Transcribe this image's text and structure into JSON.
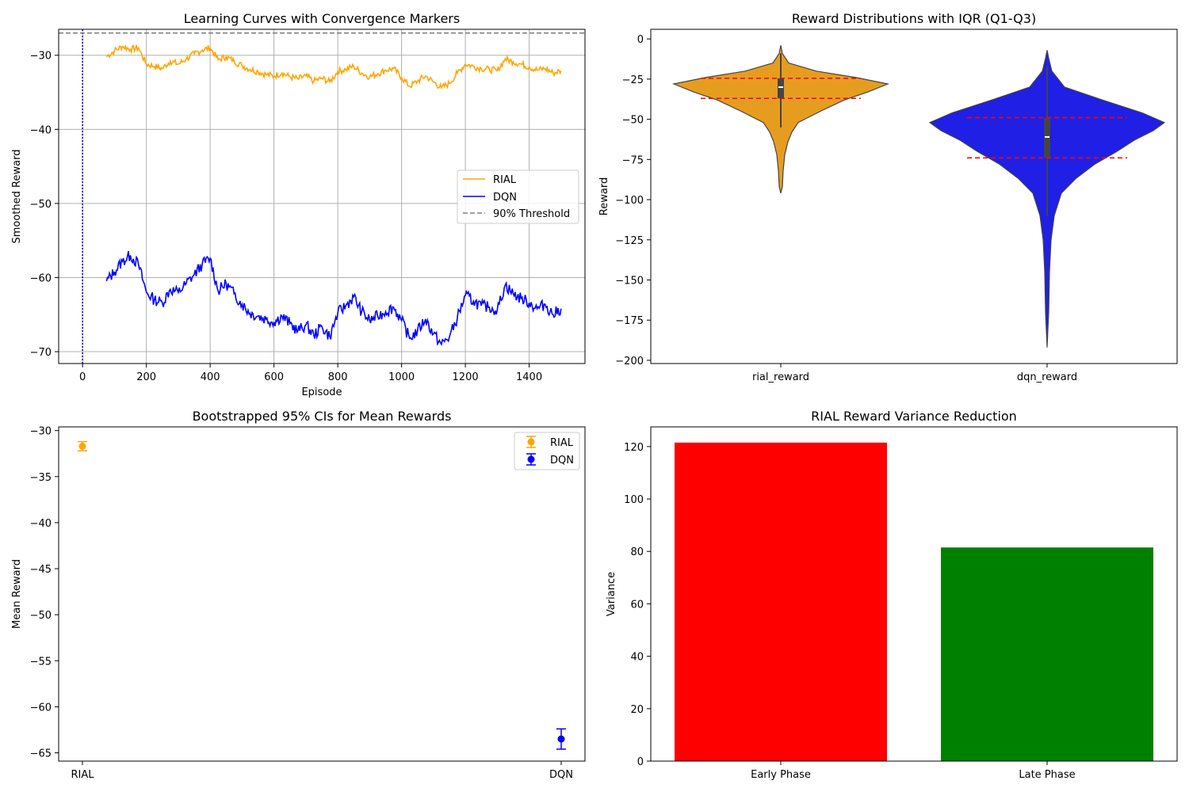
{
  "colors": {
    "rial": "#ffa500",
    "dqn": "#0000ff",
    "violin_rial": "#e69d1f",
    "violin_dqn": "#1f1fe6",
    "threshold": "#808080",
    "conv_line": "#0000cc",
    "iqr": "#ff0000",
    "early": "#ff0000",
    "late": "#008000",
    "grid": "#b0b0b0"
  },
  "chart_data": [
    {
      "type": "line",
      "title": "Learning Curves with Convergence Markers",
      "xlabel": "Episode",
      "ylabel": "Smoothed Reward",
      "xlim": [
        -75,
        1575
      ],
      "ylim": [
        -71.6,
        -26.5
      ],
      "xticks": [
        0,
        200,
        400,
        600,
        800,
        1000,
        1200,
        1400
      ],
      "yticks": [
        -30,
        -40,
        -50,
        -60,
        -70
      ],
      "grid": true,
      "legend_position": "center-right",
      "legend": [
        "RIAL",
        "DQN",
        "90% Threshold"
      ],
      "threshold": -27,
      "convergence_episode": 0,
      "x": [
        75,
        100,
        125,
        150,
        175,
        200,
        225,
        250,
        275,
        300,
        325,
        350,
        375,
        400,
        425,
        450,
        475,
        500,
        525,
        550,
        575,
        600,
        625,
        650,
        675,
        700,
        725,
        750,
        775,
        800,
        825,
        850,
        875,
        900,
        925,
        950,
        975,
        1000,
        1025,
        1050,
        1075,
        1100,
        1125,
        1150,
        1175,
        1200,
        1225,
        1250,
        1275,
        1300,
        1325,
        1350,
        1375,
        1400,
        1425,
        1450,
        1475,
        1500
      ],
      "series": [
        {
          "name": "RIAL",
          "values": [
            -30.2,
            -29.4,
            -28.8,
            -29.2,
            -29.0,
            -31.2,
            -31.5,
            -31.8,
            -30.8,
            -31.2,
            -30.5,
            -29.8,
            -29.3,
            -29.0,
            -30.6,
            -30.2,
            -30.8,
            -31.4,
            -31.9,
            -32.2,
            -32.6,
            -32.8,
            -32.4,
            -32.9,
            -33.2,
            -32.8,
            -33.5,
            -33.1,
            -33.6,
            -32.2,
            -31.9,
            -31.5,
            -32.4,
            -32.9,
            -32.5,
            -32.0,
            -31.8,
            -33.0,
            -34.2,
            -33.5,
            -32.8,
            -33.6,
            -34.4,
            -33.8,
            -32.4,
            -31.2,
            -31.5,
            -31.8,
            -31.9,
            -32.1,
            -30.5,
            -30.9,
            -31.2,
            -31.6,
            -32.0,
            -31.8,
            -32.4,
            -32.1
          ]
        },
        {
          "name": "DQN",
          "values": [
            -60.5,
            -59.2,
            -57.8,
            -57.0,
            -58.2,
            -62.0,
            -63.0,
            -63.4,
            -61.6,
            -62.0,
            -60.8,
            -59.6,
            -58.2,
            -57.4,
            -61.8,
            -60.8,
            -62.2,
            -63.6,
            -64.8,
            -65.2,
            -65.6,
            -66.0,
            -65.2,
            -66.2,
            -67.2,
            -66.4,
            -67.8,
            -66.6,
            -68.0,
            -64.8,
            -63.8,
            -62.6,
            -64.6,
            -65.8,
            -65.2,
            -64.6,
            -64.0,
            -65.8,
            -68.2,
            -67.2,
            -65.6,
            -67.6,
            -69.0,
            -68.0,
            -65.4,
            -62.4,
            -63.2,
            -63.8,
            -64.0,
            -64.4,
            -61.0,
            -62.2,
            -62.8,
            -63.4,
            -64.2,
            -63.6,
            -65.0,
            -64.2
          ]
        }
      ]
    },
    {
      "type": "violin",
      "title": "Reward Distributions with IQR (Q1-Q3)",
      "xlabel": "",
      "ylabel": "Reward",
      "ylim": [
        -202,
        6
      ],
      "yticks": [
        0,
        -25,
        -50,
        -75,
        -100,
        -125,
        -150,
        -175,
        -200
      ],
      "categories": [
        "rial_reward",
        "dqn_reward"
      ],
      "series": [
        {
          "name": "rial_reward",
          "min": -96,
          "max": -4,
          "q1": -37,
          "q3": -24.5,
          "median": -30,
          "whisker_low": -55,
          "whisker_high": -9
        },
        {
          "name": "dqn_reward",
          "min": -192,
          "max": -7,
          "q1": -74,
          "q3": -49,
          "median": -61,
          "whisker_low": -110,
          "whisker_high": -17
        }
      ]
    },
    {
      "type": "errorbar",
      "title": "Bootstrapped 95% CIs for Mean Rewards",
      "xlabel": "",
      "ylabel": "Mean Reward",
      "ylim": [
        -65.9,
        -29.6
      ],
      "yticks": [
        -30,
        -35,
        -40,
        -45,
        -50,
        -55,
        -60,
        -65
      ],
      "categories": [
        "RIAL",
        "DQN"
      ],
      "legend_position": "top-right",
      "series": [
        {
          "name": "RIAL",
          "mean": -31.7,
          "ci": [
            -32.2,
            -31.2
          ]
        },
        {
          "name": "DQN",
          "mean": -63.5,
          "ci": [
            -64.6,
            -62.4
          ]
        }
      ]
    },
    {
      "type": "bar",
      "title": "RIAL Reward Variance Reduction",
      "xlabel": "",
      "ylabel": "Variance",
      "ylim": [
        0,
        127.5
      ],
      "yticks": [
        0,
        20,
        40,
        60,
        80,
        100,
        120
      ],
      "categories": [
        "Early Phase",
        "Late Phase"
      ],
      "values": [
        121.5,
        81.5
      ]
    }
  ]
}
